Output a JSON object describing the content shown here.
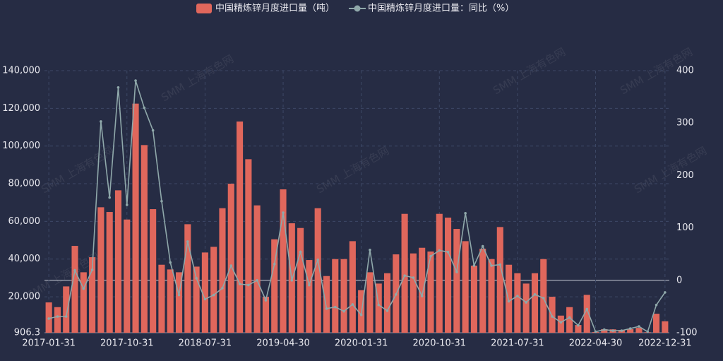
{
  "chart_data": {
    "type": "bar-line",
    "watermark": "SMM 上海有色网",
    "legend": "top",
    "grid": true,
    "categories": [
      "2017-01-31",
      null,
      null,
      null,
      null,
      null,
      null,
      null,
      null,
      "2017-10-31",
      null,
      null,
      null,
      null,
      null,
      null,
      null,
      null,
      "2018-07-31",
      null,
      null,
      null,
      null,
      null,
      null,
      null,
      null,
      "2019-04-30",
      null,
      null,
      null,
      null,
      null,
      null,
      null,
      null,
      "2020-01-31",
      null,
      null,
      null,
      null,
      null,
      null,
      null,
      null,
      "2020-10-31",
      null,
      null,
      null,
      null,
      null,
      null,
      null,
      null,
      "2021-07-31",
      null,
      null,
      null,
      null,
      null,
      null,
      null,
      null,
      "2022-04-30",
      null,
      null,
      null,
      null,
      null,
      null,
      null,
      "2022-12-31"
    ],
    "series": [
      {
        "name": "中国精炼锌月度进口量（吨）",
        "type": "bar",
        "color": "#e0675c",
        "values": [
          17000,
          14500,
          25500,
          47000,
          33000,
          41000,
          67500,
          65000,
          76500,
          61000,
          122500,
          100500,
          66500,
          37000,
          34500,
          33000,
          58500,
          36000,
          43500,
          46500,
          67000,
          80000,
          113000,
          93000,
          68500,
          20000,
          50500,
          77000,
          59000,
          56500,
          39500,
          67000,
          31000,
          40000,
          40000,
          49500,
          23500,
          33000,
          27000,
          32500,
          42500,
          64000,
          43000,
          46000,
          44000,
          64000,
          62000,
          56000,
          49500,
          36500,
          45500,
          40000,
          57000,
          37000,
          32500,
          27000,
          32500,
          40000,
          20000,
          10000,
          14500,
          5000,
          21000,
          1300,
          2800,
          2700,
          2400,
          2800,
          3500,
          1200,
          11000,
          7000
        ]
      },
      {
        "name": "中国精炼锌月度进口量：同比（%）",
        "type": "line",
        "axis": "y2",
        "color": "#8fa8aa",
        "values": [
          -73,
          -69,
          -69,
          19,
          -16,
          20,
          303,
          158,
          368,
          144,
          381,
          329,
          286,
          151,
          34,
          -28,
          74,
          4,
          -36,
          -28,
          -15,
          28,
          -7,
          -9,
          0,
          -38,
          31,
          129,
          0,
          54,
          -9,
          39,
          -54,
          -51,
          -59,
          -46,
          -66,
          58,
          -47,
          -58,
          -27,
          9,
          5,
          -30,
          46,
          57,
          54,
          16,
          128,
          28,
          65,
          28,
          30,
          -40,
          -30,
          -42,
          -27,
          -34,
          -69,
          -80,
          -71,
          -86,
          -55,
          -98,
          -94,
          -96,
          -96,
          -92,
          -88,
          -98,
          -47,
          -23
        ]
      }
    ],
    "ylim": [
      906.3,
      140000
    ],
    "yticks": [
      906.3,
      {
        "value": 20000,
        "label": "20,000"
      },
      {
        "value": 40000,
        "label": "40,000"
      },
      {
        "value": 60000,
        "label": "60,000"
      },
      {
        "value": 80000,
        "label": "80,000"
      },
      {
        "value": 100000,
        "label": "100,000"
      },
      {
        "value": 120000,
        "label": "120,000"
      },
      {
        "value": 140000,
        "label": "140,000"
      }
    ],
    "y2lim": [
      -100,
      400
    ],
    "y2ticks": [
      -100,
      0,
      100,
      200,
      300,
      400
    ]
  }
}
